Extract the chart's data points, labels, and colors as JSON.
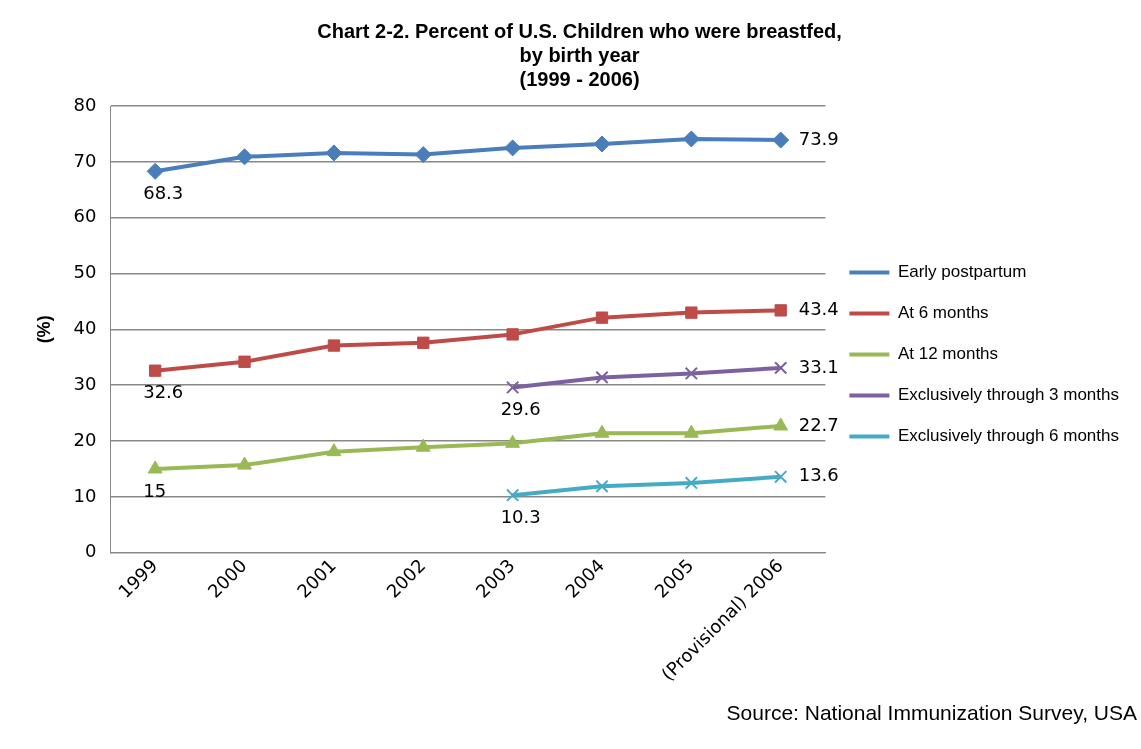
{
  "chart_data": {
    "type": "line",
    "title": "Chart 2-2. Percent of U.S. Children who were breastfed,\nby birth year\n(1999 - 2006)",
    "ylabel": "(%)",
    "categories": [
      "1999",
      "2000",
      "2001",
      "2002",
      "2003",
      "2004",
      "2005",
      "(Provisional) 2006"
    ],
    "series": [
      {
        "name": "Early postpartum",
        "color": "#4a7ebb",
        "marker": "diamond",
        "values": [
          68.3,
          70.9,
          71.6,
          71.3,
          72.5,
          73.2,
          74.1,
          73.9
        ],
        "value_labels": [
          "68.3",
          null,
          null,
          null,
          null,
          null,
          null,
          "73.9"
        ]
      },
      {
        "name": "At 6 months",
        "color": "#be4b48",
        "marker": "square",
        "values": [
          32.6,
          34.2,
          37.1,
          37.6,
          39.1,
          42.1,
          43.0,
          43.4
        ],
        "value_labels": [
          "32.6",
          null,
          null,
          null,
          null,
          null,
          null,
          "43.4"
        ]
      },
      {
        "name": "At 12 months",
        "color": "#98b954",
        "marker": "triangle",
        "values": [
          15,
          15.7,
          18.1,
          18.9,
          19.6,
          21.4,
          21.4,
          22.7
        ],
        "value_labels": [
          "15",
          null,
          null,
          null,
          null,
          null,
          null,
          "22.7"
        ]
      },
      {
        "name": "Exclusively through 3 months",
        "color": "#7d60a0",
        "marker": "cross",
        "values": [
          null,
          null,
          null,
          null,
          29.6,
          31.4,
          32.1,
          33.1
        ],
        "value_labels": [
          null,
          null,
          null,
          null,
          "29.6",
          null,
          null,
          "33.1"
        ]
      },
      {
        "name": "Exclusively through 6 months",
        "color": "#46aac5",
        "marker": "cross",
        "values": [
          null,
          null,
          null,
          null,
          10.3,
          11.9,
          12.5,
          13.6
        ],
        "value_labels": [
          null,
          null,
          null,
          null,
          "10.3",
          null,
          null,
          "13.6"
        ]
      }
    ],
    "ylim": [
      0,
      80
    ],
    "yticks": [
      0,
      10,
      20,
      30,
      40,
      50,
      60,
      70,
      80
    ],
    "grid": "y",
    "legend": "right",
    "line_style": "solid",
    "annotations": [
      "Source: National Immunization Survey, USA"
    ]
  }
}
